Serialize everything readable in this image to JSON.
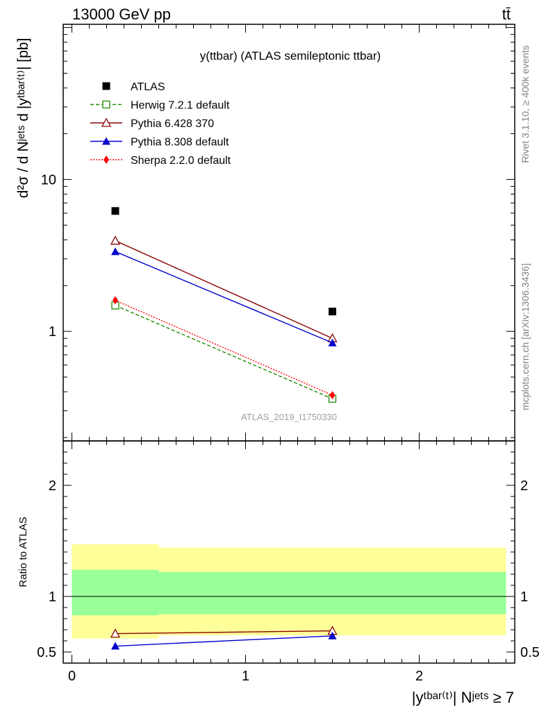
{
  "header": {
    "left": "13000 GeV pp",
    "right": "tt̄"
  },
  "side_labels": {
    "top": "Rivet 3.1.10, ≥ 400k events",
    "bottom": "mcplots.cern.ch [arXiv:1306.3436]"
  },
  "watermark": "ATLAS_2019_I1750330",
  "chart_data": [
    {
      "type": "line",
      "title": "y(ttbar) (ATLAS semileptonic ttbar)",
      "ylabel": "d²σ / d Nʲᵉᵗˢ d |yᵗᵇᵃʳ⁽ᵗ⁾| [pb]",
      "yscale": "log",
      "ylim": [
        0.19,
        105
      ],
      "ytick_labels": [
        "1",
        "10"
      ],
      "xlim": [
        -0.05,
        2.55
      ],
      "x": [
        0.25,
        1.5
      ],
      "legend_placement": "top-left",
      "series": [
        {
          "name": "ATLAS",
          "values": [
            6.2,
            1.35
          ],
          "color": "#000000",
          "marker": "square-filled",
          "line": "none"
        },
        {
          "name": "Herwig 7.2.1 default",
          "values": [
            1.48,
            0.36
          ],
          "color": "#1f8a00",
          "marker": "square-open",
          "line": "dashed"
        },
        {
          "name": "Pythia 6.428 370",
          "values": [
            3.95,
            0.9
          ],
          "color": "#8b0000",
          "marker": "triangle-open",
          "line": "solid"
        },
        {
          "name": "Pythia 8.308 default",
          "values": [
            3.35,
            0.84
          ],
          "color": "#0000cc",
          "marker": "triangle-filled",
          "line": "solid"
        },
        {
          "name": "Sherpa 2.2.0 default",
          "values": [
            1.6,
            0.38
          ],
          "color": "#ff0000",
          "marker": "diamond-filled",
          "line": "dotted"
        }
      ]
    },
    {
      "type": "line",
      "ylabel": "Ratio to ATLAS",
      "ylim": [
        0.4,
        2.4
      ],
      "ytick_labels": [
        "0.5",
        "1",
        "2"
      ],
      "xlabel": "|yᵗᵇᵃʳ⁽ᵗ⁾| Nʲᵉᵗˢ ≥ 7",
      "xtick_labels": [
        "0",
        "1",
        "2"
      ],
      "xlim": [
        -0.05,
        2.55
      ],
      "x": [
        0.25,
        1.5
      ],
      "bands": [
        {
          "name": "stat",
          "color": "#99ff99",
          "bins": [
            {
              "x0": 0.0,
              "x1": 0.5,
              "lo": 0.83,
              "hi": 1.24
            },
            {
              "x0": 0.5,
              "x1": 2.5,
              "lo": 0.84,
              "hi": 1.22
            }
          ]
        },
        {
          "name": "total",
          "color": "#ffff99",
          "bins": [
            {
              "x0": 0.0,
              "x1": 0.5,
              "lo": 0.62,
              "hi": 1.47
            },
            {
              "x0": 0.5,
              "x1": 2.5,
              "lo": 0.65,
              "hi": 1.44
            }
          ]
        }
      ],
      "series": [
        {
          "name": "Pythia 6.428 370",
          "values": [
            0.665,
            0.69
          ],
          "color": "#8b0000",
          "marker": "triangle-open"
        },
        {
          "name": "Pythia 8.308 default",
          "values": [
            0.553,
            0.645
          ],
          "color": "#0000cc",
          "marker": "triangle-filled"
        }
      ]
    }
  ]
}
